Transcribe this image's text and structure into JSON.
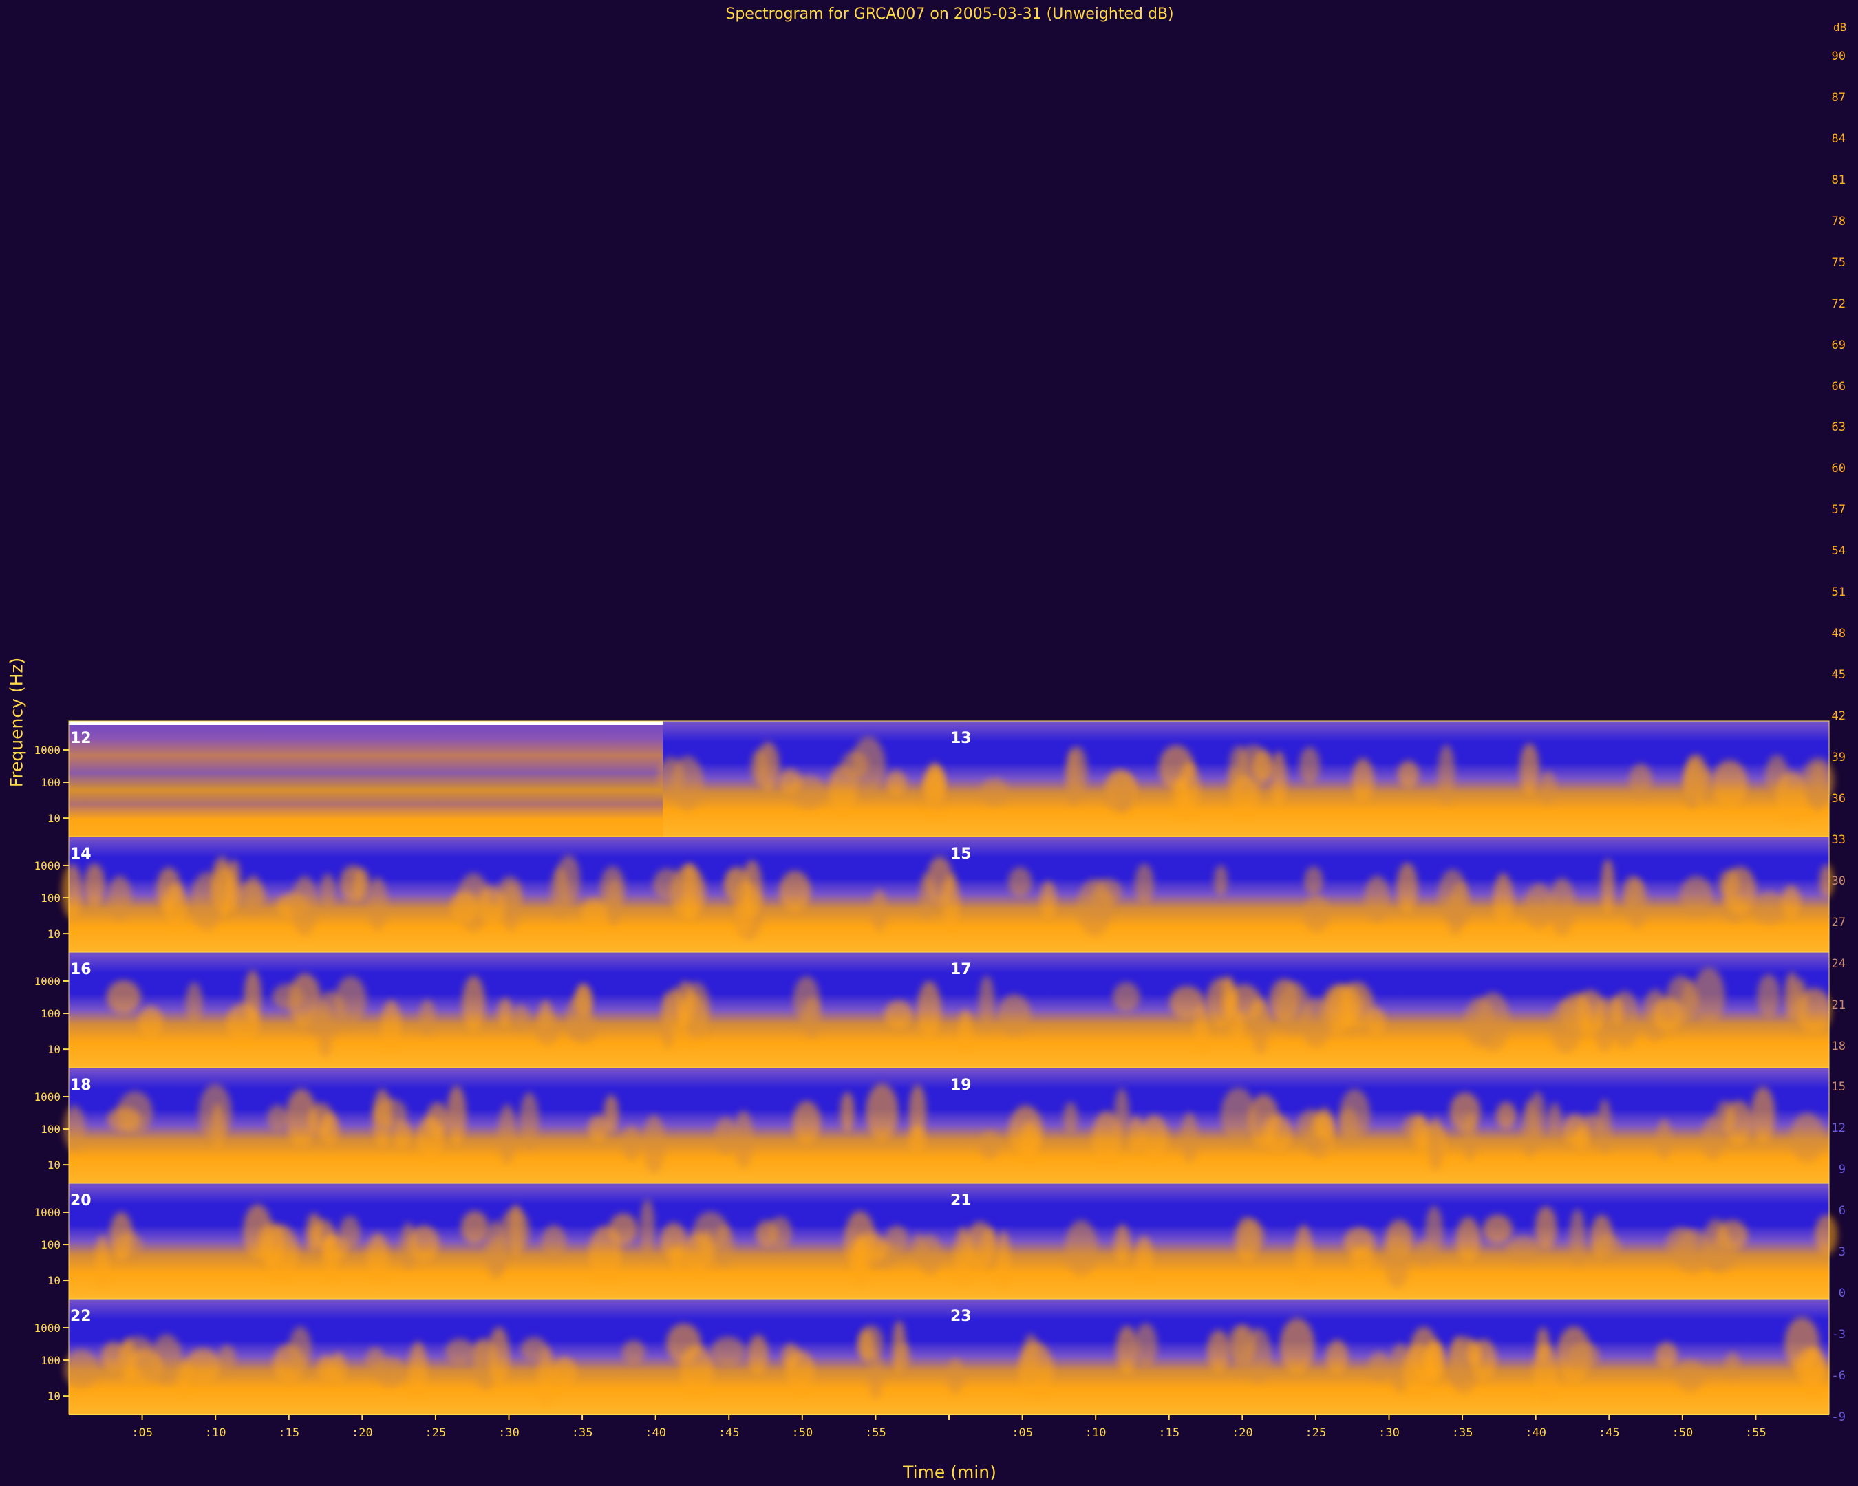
{
  "title": "Spectrogram for GRCA007 on 2005-03-31 (Unweighted dB)",
  "colorbar": {
    "unit": "dB",
    "ticks": [
      90,
      87,
      84,
      81,
      78,
      75,
      72,
      69,
      66,
      63,
      60,
      57,
      54,
      51,
      48,
      45,
      42,
      39,
      36,
      33,
      30,
      27,
      24,
      21,
      18,
      15,
      12,
      9,
      6,
      3,
      0,
      -3,
      -6,
      -9
    ]
  },
  "chart_data": {
    "type": "heatmap",
    "title": "Spectrogram for GRCA007 on 2005-03-31 (Unweighted dB)",
    "xlabel": "Time (min)",
    "ylabel": "Frequency (Hz)",
    "colorbar_unit": "dB",
    "colorbar_range": [
      -9,
      90
    ],
    "y_ticks": [
      "1000",
      "100",
      "10"
    ],
    "x_tick_labels": [
      ":05",
      ":10",
      ":15",
      ":20",
      ":25",
      ":30",
      ":35",
      ":40",
      ":45",
      ":50",
      ":55",
      "",
      ":05",
      ":10",
      ":15",
      ":20",
      ":25",
      ":30",
      ":35",
      ":40",
      ":45",
      ":50",
      ":55"
    ],
    "panels": [
      {
        "hours": [
          "12",
          "13"
        ],
        "silent_until_minute": 40.5
      },
      {
        "hours": [
          "14",
          "15"
        ]
      },
      {
        "hours": [
          "16",
          "17"
        ]
      },
      {
        "hours": [
          "18",
          "19"
        ]
      },
      {
        "hours": [
          "20",
          "21"
        ]
      },
      {
        "hours": [
          "22",
          "23"
        ]
      }
    ],
    "colors": {
      "background": "#170533",
      "low": "#2d1fd8",
      "mid": "#7a55c8",
      "high": "#ffa514",
      "axis": "#ffd84a"
    }
  }
}
